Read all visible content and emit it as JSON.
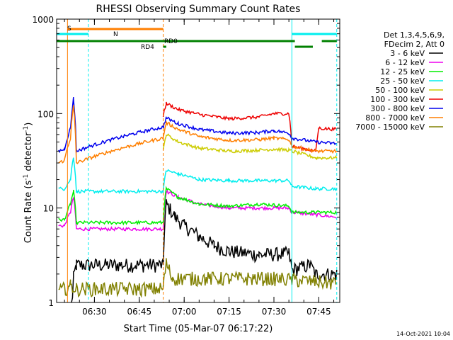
{
  "chart_data": {
    "type": "line",
    "title": "RHESSI Observing Summary Count Rates",
    "xlabel": "Start Time (05-Mar-07 06:17:22)",
    "ylabel_parts": [
      "Count Rate (s",
      "-1",
      " detector",
      "-1",
      ")"
    ],
    "xscale": "time",
    "yscale": "log",
    "xlim": [
      "06:17:22",
      "07:52:00"
    ],
    "ylim": [
      1,
      1000
    ],
    "x_ticks": [
      "06:30",
      "06:45",
      "07:00",
      "07:15",
      "07:30",
      "07:45"
    ],
    "y_ticks": [
      "1",
      "10",
      "100",
      "1000"
    ],
    "y_tick_values": [
      1,
      10,
      100,
      1000
    ],
    "grid": false,
    "legend_position": "right",
    "legend_header": [
      "Det 1,3,4,5,6,9,",
      "FDecim 2, Att 0"
    ],
    "timestamp": "14-Oct-2021 10:04",
    "series": [
      {
        "name": "3 - 6 keV",
        "color": "#000000",
        "points": [
          [
            "06:18",
            0
          ],
          [
            "06:22",
            0
          ],
          [
            "06:23",
            1.8
          ],
          [
            "06:24",
            2.5
          ],
          [
            "06:53",
            2.5
          ],
          [
            "06:54",
            11
          ],
          [
            "06:57",
            8
          ],
          [
            "07:00",
            6.5
          ],
          [
            "07:05",
            5
          ],
          [
            "07:10",
            4
          ],
          [
            "07:15",
            3.5
          ],
          [
            "07:25",
            3.2
          ],
          [
            "07:35",
            3.3
          ],
          [
            "07:36",
            2.2
          ],
          [
            "07:42",
            2.5
          ],
          [
            "07:44",
            2.0
          ],
          [
            "07:51",
            2.0
          ]
        ]
      },
      {
        "name": "6 - 12 keV",
        "color": "#ee00ee",
        "points": [
          [
            "06:18",
            6.5
          ],
          [
            "06:20",
            6.5
          ],
          [
            "06:22",
            9
          ],
          [
            "06:23",
            13
          ],
          [
            "06:24",
            6
          ],
          [
            "06:53",
            6
          ],
          [
            "06:54",
            15
          ],
          [
            "06:58",
            13
          ],
          [
            "07:05",
            11
          ],
          [
            "07:15",
            10
          ],
          [
            "07:25",
            10
          ],
          [
            "07:35",
            10
          ],
          [
            "07:36",
            9
          ],
          [
            "07:44",
            8.5
          ],
          [
            "07:51",
            8
          ]
        ]
      },
      {
        "name": "12 - 25 keV",
        "color": "#00ee00",
        "points": [
          [
            "06:18",
            7.5
          ],
          [
            "06:20",
            7.5
          ],
          [
            "06:22",
            11
          ],
          [
            "06:23",
            15
          ],
          [
            "06:24",
            7
          ],
          [
            "06:53",
            7
          ],
          [
            "06:54",
            16
          ],
          [
            "06:58",
            13
          ],
          [
            "07:05",
            11
          ],
          [
            "07:15",
            10.5
          ],
          [
            "07:25",
            11
          ],
          [
            "07:35",
            10.5
          ],
          [
            "07:36",
            9
          ],
          [
            "07:44",
            9
          ],
          [
            "07:51",
            9
          ]
        ]
      },
      {
        "name": "25 - 50 keV",
        "color": "#00eeee",
        "points": [
          [
            "06:18",
            16
          ],
          [
            "06:20",
            16
          ],
          [
            "06:22",
            20
          ],
          [
            "06:23",
            35
          ],
          [
            "06:24",
            15
          ],
          [
            "06:53",
            15
          ],
          [
            "06:54",
            25
          ],
          [
            "06:58",
            23
          ],
          [
            "07:05",
            20
          ],
          [
            "07:15",
            19.5
          ],
          [
            "07:25",
            19.5
          ],
          [
            "07:35",
            19.5
          ],
          [
            "07:36",
            17
          ],
          [
            "07:44",
            16
          ],
          [
            "07:51",
            16
          ]
        ]
      },
      {
        "name": "50 - 100 keV",
        "color": "#cccc00",
        "points": [
          [
            "06:53",
            40
          ],
          [
            "06:54",
            60
          ],
          [
            "06:58",
            50
          ],
          [
            "07:05",
            43
          ],
          [
            "07:15",
            40
          ],
          [
            "07:25",
            41
          ],
          [
            "07:30",
            42
          ],
          [
            "07:35",
            41
          ],
          [
            "07:36",
            40
          ],
          [
            "07:44",
            34
          ],
          [
            "07:51",
            34
          ]
        ]
      },
      {
        "name": "100 - 300 keV",
        "color": "#ee0000",
        "points": [
          [
            "06:53",
            95
          ],
          [
            "06:54",
            128
          ],
          [
            "06:58",
            110
          ],
          [
            "07:05",
            98
          ],
          [
            "07:15",
            88
          ],
          [
            "07:25",
            92
          ],
          [
            "07:30",
            100
          ],
          [
            "07:35",
            100
          ],
          [
            "07:36",
            45
          ],
          [
            "07:44",
            40
          ],
          [
            "07:45",
            70
          ],
          [
            "07:51",
            68
          ]
        ]
      },
      {
        "name": "300 - 800 keV",
        "color": "#0000ee",
        "points": [
          [
            "06:18",
            40
          ],
          [
            "06:20",
            42
          ],
          [
            "06:22",
            70
          ],
          [
            "06:23",
            145
          ],
          [
            "06:24",
            40
          ],
          [
            "06:53",
            72
          ],
          [
            "06:54",
            90
          ],
          [
            "06:58",
            78
          ],
          [
            "07:05",
            68
          ],
          [
            "07:15",
            62
          ],
          [
            "07:25",
            63
          ],
          [
            "07:30",
            66
          ],
          [
            "07:35",
            62
          ],
          [
            "07:36",
            55
          ],
          [
            "07:44",
            50
          ],
          [
            "07:51",
            48
          ]
        ]
      },
      {
        "name": "800 - 7000 keV",
        "color": "#ff7f00",
        "points": [
          [
            "06:18",
            30
          ],
          [
            "06:20",
            32
          ],
          [
            "06:22",
            55
          ],
          [
            "06:23",
            120
          ],
          [
            "06:24",
            30
          ],
          [
            "06:53",
            55
          ],
          [
            "06:54",
            80
          ],
          [
            "06:58",
            68
          ],
          [
            "07:05",
            57
          ],
          [
            "07:15",
            52
          ],
          [
            "07:25",
            53
          ],
          [
            "07:30",
            55
          ],
          [
            "07:35",
            53
          ],
          [
            "07:36",
            45
          ],
          [
            "07:44",
            40
          ],
          [
            "07:51",
            40
          ]
        ]
      },
      {
        "name": "7000 - 15000 keV",
        "color": "#808000",
        "points": [
          [
            "06:18",
            1.3
          ],
          [
            "06:22",
            1.5
          ],
          [
            "06:24",
            1.4
          ],
          [
            "06:53",
            1.4
          ],
          [
            "06:54",
            2.6
          ],
          [
            "06:56",
            1.8
          ],
          [
            "07:30",
            1.8
          ],
          [
            "07:51",
            1.6
          ]
        ]
      }
    ],
    "flag_bars": [
      {
        "label": "S",
        "color": "#ff7f00",
        "start": "06:21:00",
        "end": "06:53:00",
        "level": 1
      },
      {
        "label": "N",
        "color": "#00eeee",
        "start": "06:17:22",
        "end": "06:28:00",
        "level": 2
      },
      {
        "label": "N",
        "color": "#00eeee",
        "start": "07:36:00",
        "end": "07:51:00",
        "level": 2
      },
      {
        "label": "RD0",
        "color": "#008000",
        "start": "06:17:22",
        "end": "07:37:00",
        "level": 3
      },
      {
        "label": "RD0",
        "color": "#008000",
        "start": "07:46:00",
        "end": "07:51:00",
        "level": 3
      },
      {
        "label": "RD4",
        "color": "#008000",
        "start": "06:53:00",
        "end": "06:54:00",
        "level": 4
      },
      {
        "label": "RD4",
        "color": "#008000",
        "start": "07:37:00",
        "end": "07:43:00",
        "level": 4
      }
    ],
    "flag_labels_shown": [
      "S",
      "N",
      "RD0",
      "RD4"
    ],
    "vlines": [
      {
        "time": "06:17:22",
        "color": "#00eeee",
        "style": "solid"
      },
      {
        "time": "06:21:00",
        "color": "#ff7f00",
        "style": "solid"
      },
      {
        "time": "06:28:00",
        "color": "#00eeee",
        "style": "dashed"
      },
      {
        "time": "06:53:00",
        "color": "#ff7f00",
        "style": "dashed"
      },
      {
        "time": "07:36:00",
        "color": "#00eeee",
        "style": "solid"
      },
      {
        "time": "07:51:00",
        "color": "#00eeee",
        "style": "dashed"
      }
    ]
  }
}
